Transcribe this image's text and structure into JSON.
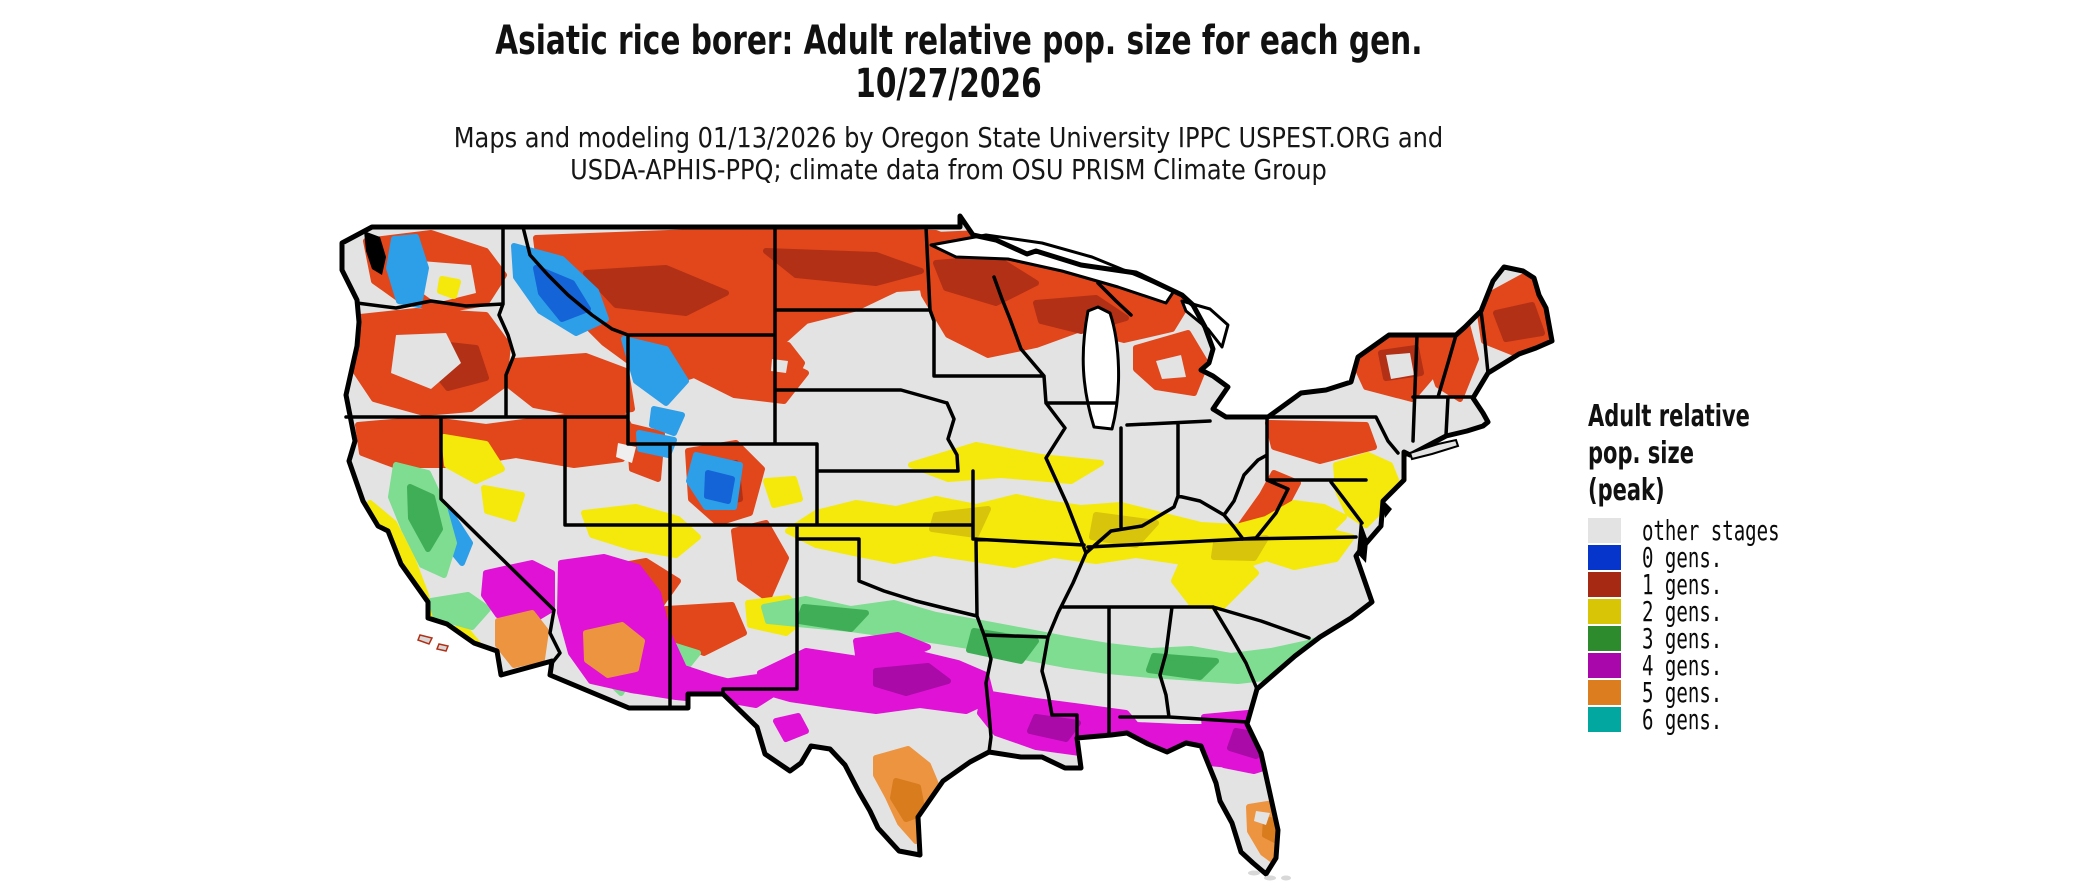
{
  "title": {
    "line1": "Asiatic rice borer: Adult relative pop. size for each gen.",
    "line2": "10/27/2026"
  },
  "subtitle": {
    "line1": "Maps and modeling 01/13/2026 by Oregon State University IPPC USPEST.ORG and",
    "line2": "USDA-APHIS-PPQ; climate data from OSU PRISM Climate Group"
  },
  "legend": {
    "title_lines": [
      "Adult relative",
      "pop. size",
      "(peak)"
    ],
    "items": [
      {
        "key": "other",
        "label": "other stages",
        "color": "#e3e3e3"
      },
      {
        "key": "g0",
        "label": "0 gens.",
        "color": "#0535cb",
        "map_color": "#2d9fe8",
        "map_color_dark": "#1464d8"
      },
      {
        "key": "g1",
        "label": "1 gens.",
        "color": "#a62a13",
        "map_color": "#e2461b",
        "map_color_dark": "#b23016"
      },
      {
        "key": "g2",
        "label": "2 gens.",
        "color": "#d8c506",
        "map_color": "#f4e90b",
        "map_color_dark": "#d8c40a"
      },
      {
        "key": "g3",
        "label": "3 gens.",
        "color": "#2e8b2d",
        "map_color": "#7edd90",
        "map_color_dark": "#3fae57"
      },
      {
        "key": "g4",
        "label": "4 gens.",
        "color": "#a906ab",
        "map_color": "#e012d6",
        "map_color_dark": "#a90aa8"
      },
      {
        "key": "g5",
        "label": "5 gens.",
        "color": "#dc7e20",
        "map_color": "#ec9440",
        "map_color_dark": "#d87c1e"
      },
      {
        "key": "g6",
        "label": "6 gens.",
        "color": "#02a79f",
        "map_color": "#02a79f",
        "map_color_dark": "#029a92"
      }
    ]
  },
  "map": {
    "name": "contiguous-united-states",
    "base_color": "#e3e3e3",
    "border_color": "#000000",
    "water_color": "#ffffff"
  }
}
